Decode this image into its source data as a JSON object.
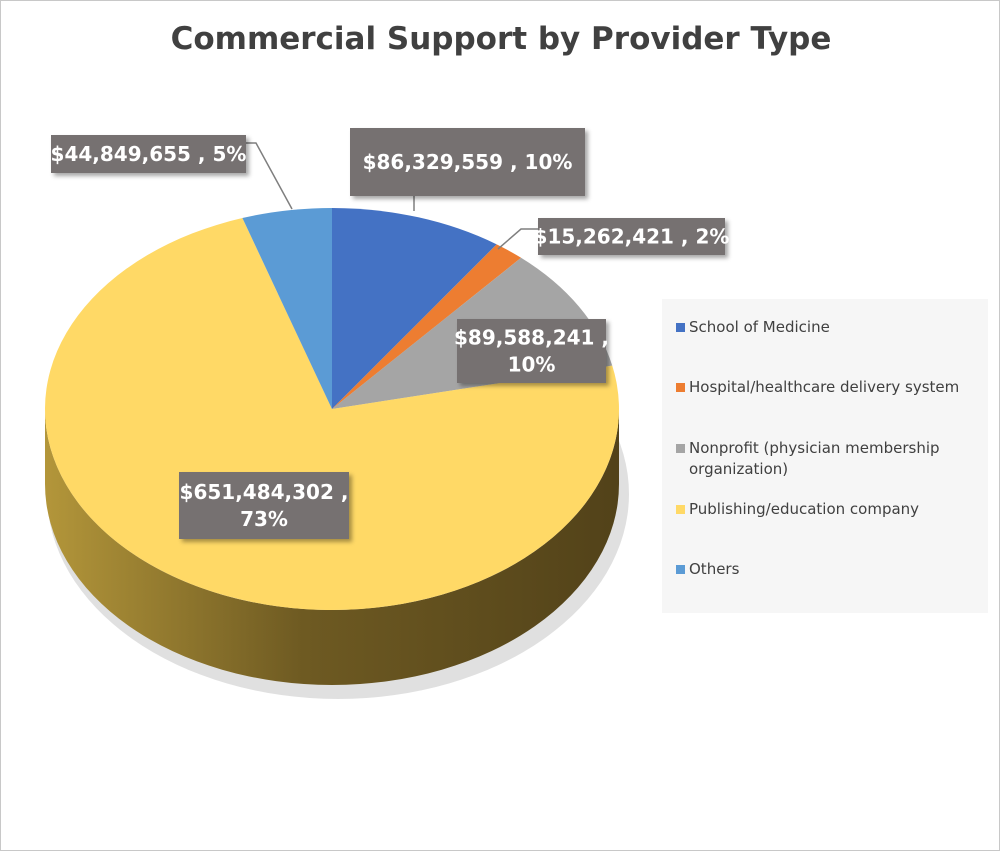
{
  "chart_data": {
    "type": "pie",
    "title": "Commercial Support by Provider Type",
    "slices": [
      {
        "label": "School of Medicine",
        "value": 86329559,
        "percent": 10,
        "color": "#4472c4",
        "data_label": [
          "$86,329,559 , 10%"
        ]
      },
      {
        "label": "Hospital/healthcare delivery system",
        "value": 15262421,
        "percent": 2,
        "color": "#ed7d31",
        "data_label": [
          "$15,262,421 , 2%"
        ]
      },
      {
        "label": "Nonprofit (physician membership organization)",
        "value": 89588241,
        "percent": 10,
        "color": "#a5a5a5",
        "data_label": [
          "$89,588,241 ,",
          "10%"
        ]
      },
      {
        "label": "Publishing/education company",
        "value": 651484302,
        "percent": 73,
        "color": "#ffd966",
        "data_label": [
          "$651,484,302 ,",
          "73%"
        ]
      },
      {
        "label": "Others",
        "value": 44849655,
        "percent": 5,
        "color": "#5b9bd5",
        "data_label": [
          "$44,849,655 , 5%"
        ]
      }
    ],
    "legend_position": "right",
    "style": "3d-pie"
  }
}
